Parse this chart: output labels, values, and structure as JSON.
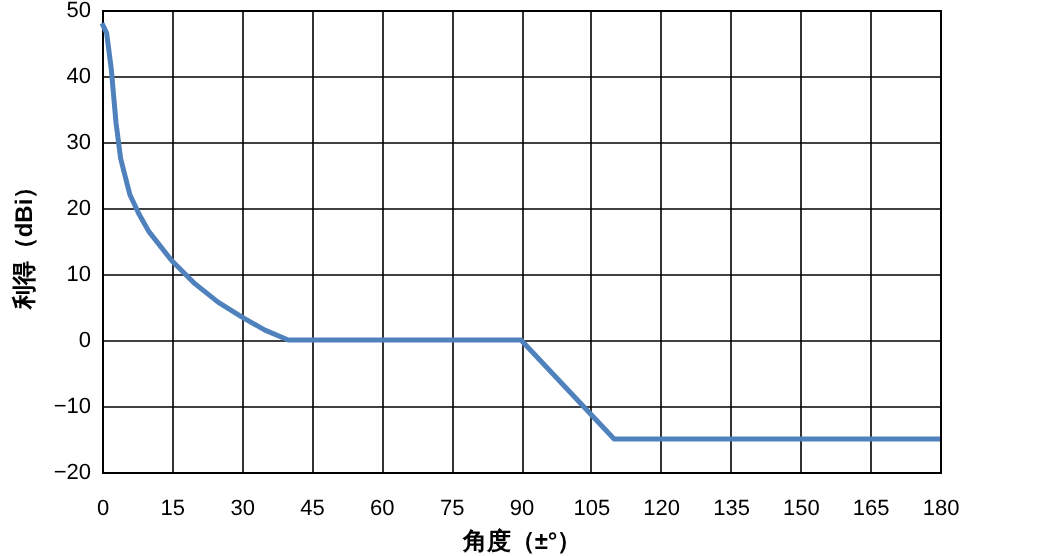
{
  "chart_data": {
    "type": "line",
    "xlabel": "角度（±°）",
    "ylabel": "利得（dBi）",
    "x": [
      0,
      1,
      2,
      3,
      4,
      6,
      8,
      10,
      15,
      20,
      25,
      30,
      35,
      40,
      90,
      110,
      180
    ],
    "series": [
      {
        "color": "#4f81bd",
        "values": [
          48,
          46.5,
          41,
          33,
          27.5,
          22,
          19,
          16.5,
          12,
          8.5,
          5.7,
          3.5,
          1.5,
          0,
          0,
          -15,
          -15
        ]
      }
    ],
    "xlim": [
      0,
      180
    ],
    "xticks": [
      0,
      15,
      30,
      45,
      60,
      75,
      90,
      105,
      120,
      135,
      150,
      165,
      180
    ],
    "ylim": [
      -20,
      50
    ],
    "yticks": [
      -20,
      -10,
      0,
      10,
      20,
      30,
      40,
      50
    ],
    "grid": true,
    "marker": "none",
    "line_style": "solid"
  }
}
